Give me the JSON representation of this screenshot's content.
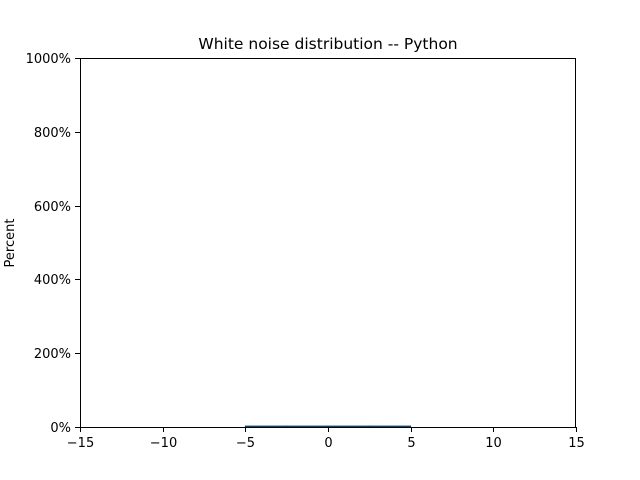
{
  "chart_data": {
    "type": "bar",
    "title": "White noise distribution -- Python",
    "xlabel": "",
    "ylabel": "Percent",
    "xlim": [
      -15,
      15
    ],
    "ylim": [
      0,
      10
    ],
    "xticks": [
      -15,
      -10,
      -5,
      0,
      5,
      10,
      15
    ],
    "xtick_labels": [
      "−15",
      "−10",
      "−5",
      "0",
      "5",
      "10",
      "15"
    ],
    "yticks": [
      0,
      2,
      4,
      6,
      8,
      10
    ],
    "ytick_labels": [
      "0%",
      "200%",
      "400%",
      "600%",
      "800%",
      "1000%"
    ],
    "bins": [
      {
        "x0": -5,
        "x1": -2.5,
        "value": 0.006
      },
      {
        "x0": -2.5,
        "x1": 0,
        "value": 0.012
      },
      {
        "x0": 0,
        "x1": 2.5,
        "value": 0.012
      },
      {
        "x0": 2.5,
        "x1": 5,
        "value": 0.006
      }
    ],
    "bar_color": "#1f77b4",
    "bar_edge_color": "#0b3d66",
    "grid": false,
    "legend": "none"
  }
}
